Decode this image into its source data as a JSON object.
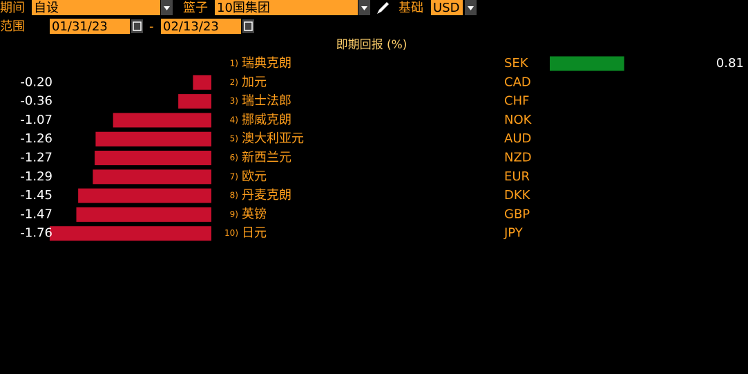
{
  "header": {
    "period_label": "期间",
    "period_value": "自设",
    "basket_label": "篮子",
    "basket_value": "10国集团",
    "base_label": "基础",
    "base_value": "USD",
    "range_label": "范围",
    "start_date": "01/31/23",
    "separator": "-",
    "end_date": "02/13/23"
  },
  "chart_data": {
    "type": "bar",
    "orientation": "horizontal",
    "title": "即期回报 (%)",
    "ranks": [
      "1)",
      "2)",
      "3)",
      "4)",
      "5)",
      "6)",
      "7)",
      "8)",
      "9)",
      "10)"
    ],
    "categories": [
      "瑞典克朗",
      "加元",
      "瑞士法郎",
      "挪威克朗",
      "澳大利亚元",
      "新西兰元",
      "欧元",
      "丹麦克朗",
      "英镑",
      "日元"
    ],
    "codes": [
      "SEK",
      "CAD",
      "CHF",
      "NOK",
      "AUD",
      "NZD",
      "EUR",
      "DKK",
      "GBP",
      "JPY"
    ],
    "values": [
      0.81,
      -0.2,
      -0.36,
      -1.07,
      -1.26,
      -1.27,
      -1.29,
      -1.45,
      -1.47,
      -1.76
    ],
    "value_labels": [
      "0.81",
      "-0.20",
      "-0.36",
      "-1.07",
      "-1.26",
      "-1.27",
      "-1.29",
      "-1.45",
      "-1.47",
      "-1.76"
    ],
    "positive_color": "#0b8a24",
    "negative_color": "#c8102e"
  }
}
